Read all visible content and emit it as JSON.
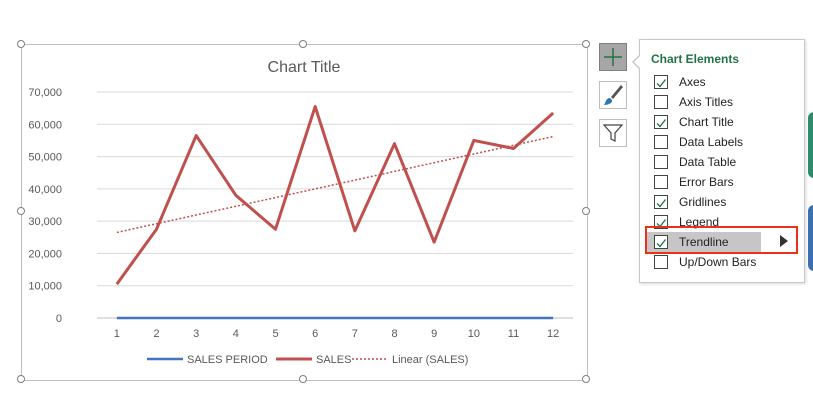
{
  "chart": {
    "title": "Chart Title",
    "chart_data": {
      "type": "line",
      "title": "Chart Title",
      "x": [
        1,
        2,
        3,
        4,
        5,
        6,
        7,
        8,
        9,
        10,
        11,
        12
      ],
      "ylim": [
        0,
        70000
      ],
      "yticks": [
        0,
        10000,
        20000,
        30000,
        40000,
        50000,
        60000,
        70000
      ],
      "ytick_labels": [
        "0",
        "10,000",
        "20,000",
        "30,000",
        "40,000",
        "50,000",
        "60,000",
        "70,000"
      ],
      "xtick_labels": [
        "1",
        "2",
        "3",
        "4",
        "5",
        "6",
        "7",
        "8",
        "9",
        "10",
        "11",
        "12"
      ],
      "grid": true,
      "legend_position": "bottom",
      "series": [
        {
          "name": "SALES PERIOD",
          "color": "#4472c4",
          "values": [
            1,
            2,
            3,
            4,
            5,
            6,
            7,
            8,
            9,
            10,
            11,
            12
          ]
        },
        {
          "name": "SALES",
          "color": "#c0504d",
          "values": [
            10500,
            27500,
            56500,
            38000,
            27500,
            65500,
            27000,
            54000,
            23500,
            55000,
            52500,
            63500
          ]
        }
      ],
      "trendline": {
        "name": "Linear (SALES)",
        "color": "#c0504d",
        "style": "dotted",
        "start": 26500,
        "end": 56200
      }
    }
  },
  "panel": {
    "title": "Chart Elements",
    "items": [
      {
        "label": "Axes",
        "checked": true
      },
      {
        "label": "Axis Titles",
        "checked": false
      },
      {
        "label": "Chart Title",
        "checked": true
      },
      {
        "label": "Data Labels",
        "checked": false
      },
      {
        "label": "Data Table",
        "checked": false
      },
      {
        "label": "Error Bars",
        "checked": false
      },
      {
        "label": "Gridlines",
        "checked": true
      },
      {
        "label": "Legend",
        "checked": true
      },
      {
        "label": "Trendline",
        "checked": true
      },
      {
        "label": "Up/Down Bars",
        "checked": false
      }
    ]
  },
  "icons": {
    "elements": "plus-icon",
    "styles": "paintbrush-icon",
    "filter": "funnel-icon"
  },
  "colors": {
    "accent": "#217346",
    "highlight": "#e8321c"
  }
}
